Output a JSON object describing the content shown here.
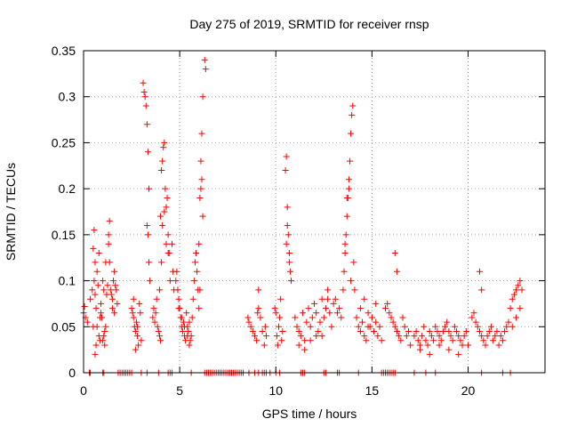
{
  "chart_data": {
    "type": "scatter",
    "title": "Day 275 of 2019, SRMTID for receiver rnsp",
    "xlabel": "GPS time / hours",
    "ylabel": "SRMTID / TECUs",
    "xlim": [
      0,
      24
    ],
    "ylim": [
      0,
      0.35
    ],
    "xticks": [
      0,
      5,
      10,
      15,
      20
    ],
    "xtick_labels": [
      "0",
      "5",
      "10",
      "15",
      "20"
    ],
    "yticks": [
      0,
      0.05,
      0.1,
      0.15,
      0.2,
      0.25,
      0.3,
      0.35
    ],
    "ytick_labels": [
      "0",
      "0.05",
      "0.1",
      "0.15",
      "0.2",
      "0.25",
      "0.3",
      "0.35"
    ],
    "grid": true,
    "marker": "+",
    "color": "#ff0000",
    "series": [
      {
        "name": "SRMTID",
        "x": [
          0.0,
          0.05,
          0.1,
          0.2,
          0.35,
          0.45,
          0.5,
          0.55,
          0.6,
          0.65,
          0.7,
          0.75,
          0.8,
          0.85,
          0.9,
          0.95,
          1.0,
          1.05,
          1.1,
          1.15,
          1.2,
          1.25,
          1.3,
          1.35,
          1.4,
          1.45,
          1.5,
          1.55,
          1.6,
          1.65,
          1.7,
          1.75,
          0.5,
          0.55,
          0.6,
          0.8,
          0.9,
          1.0,
          1.05,
          1.1,
          1.15,
          0.6,
          0.65,
          0.7,
          0.85,
          1.3,
          1.35,
          1.5,
          1.6,
          2.5,
          2.55,
          2.6,
          2.65,
          2.7,
          2.75,
          2.8,
          2.85,
          2.9,
          2.95,
          3.0,
          2.6,
          2.7,
          2.8,
          3.1,
          3.15,
          3.2,
          3.25,
          3.3,
          3.35,
          3.4,
          3.3,
          3.35,
          3.4,
          3.45,
          3.6,
          3.65,
          3.7,
          3.75,
          3.8,
          3.85,
          3.9,
          3.95,
          4.0,
          4.05,
          4.1,
          4.15,
          4.2,
          4.25,
          4.3,
          4.35,
          4.4,
          4.45,
          4.5,
          4.6,
          4.65,
          4.7,
          3.95,
          4.0,
          4.05,
          4.1,
          4.2,
          4.3,
          4.4,
          4.8,
          4.85,
          4.9,
          4.95,
          5.0,
          5.05,
          5.1,
          5.15,
          5.2,
          5.25,
          5.3,
          5.35,
          5.4,
          5.45,
          5.5,
          5.55,
          5.6,
          4.95,
          5.1,
          5.25,
          5.4,
          5.5,
          5.65,
          5.7,
          5.75,
          5.8,
          5.85,
          5.9,
          5.95,
          6.0,
          6.05,
          6.1,
          6.15,
          6.2,
          6.3,
          6.35,
          6.0,
          6.05,
          6.1,
          6.15,
          6.2,
          8.55,
          8.6,
          8.7,
          8.8,
          8.9,
          9.0,
          9.05,
          9.1,
          9.2,
          9.3,
          9.4,
          9.45,
          9.5,
          9.1,
          9.95,
          10.0,
          10.05,
          10.1,
          10.15,
          10.2,
          10.25,
          10.3,
          10.35,
          10.5,
          10.55,
          10.6,
          10.65,
          10.7,
          10.75,
          10.8,
          10.55,
          10.6,
          10.7,
          11.0,
          11.1,
          11.2,
          11.3,
          11.4,
          11.5,
          11.6,
          11.7,
          11.8,
          11.9,
          12.0,
          12.1,
          12.2,
          12.3,
          12.4,
          12.5,
          12.6,
          12.7,
          12.8,
          12.9,
          11.2,
          11.5,
          11.8,
          12.1,
          12.4,
          12.7,
          13.0,
          13.1,
          13.2,
          13.3,
          13.4,
          13.5,
          13.55,
          13.6,
          13.65,
          13.7,
          13.75,
          13.8,
          13.85,
          13.9,
          13.95,
          14.0,
          14.05,
          14.1,
          13.6,
          13.7,
          13.8,
          13.9,
          14.2,
          14.3,
          14.4,
          14.5,
          14.6,
          14.7,
          14.8,
          14.9,
          15.0,
          15.1,
          15.2,
          15.3,
          15.4,
          15.5,
          14.4,
          14.6,
          14.8,
          15.0,
          15.2,
          15.7,
          15.8,
          15.9,
          16.0,
          16.1,
          16.2,
          16.3,
          16.4,
          16.5,
          16.6,
          16.7,
          16.8,
          16.9,
          17.0,
          16.2,
          16.3,
          17.2,
          17.3,
          17.4,
          17.5,
          17.6,
          17.7,
          17.8,
          17.9,
          18.0,
          18.1,
          18.2,
          18.3,
          18.4,
          18.5,
          18.6,
          18.7,
          18.8,
          18.9,
          19.0,
          19.1,
          19.2,
          19.3,
          19.4,
          19.5,
          19.6,
          19.7,
          19.8,
          19.9,
          20.0,
          17.5,
          18.0,
          18.5,
          19.0,
          19.5,
          20.2,
          20.3,
          20.4,
          20.5,
          20.6,
          20.7,
          20.8,
          20.9,
          21.0,
          21.1,
          21.2,
          21.3,
          21.4,
          21.5,
          21.6,
          21.7,
          21.8,
          21.9,
          22.0,
          22.1,
          22.2,
          22.3,
          22.4,
          22.5,
          22.6,
          22.7,
          22.8,
          20.6,
          20.7,
          22.3,
          22.5,
          22.7,
          0.3,
          0.35,
          1.0,
          1.05,
          1.8,
          1.9,
          2.0,
          2.1,
          2.2,
          2.3,
          2.4,
          2.5,
          3.0,
          3.3,
          3.9,
          4.4,
          4.5,
          4.6,
          5.6,
          6.3,
          6.4,
          6.5,
          6.6,
          6.7,
          6.8,
          6.9,
          7.0,
          7.1,
          7.2,
          7.3,
          7.4,
          7.5,
          7.6,
          7.7,
          7.8,
          7.9,
          8.0,
          8.1,
          8.2,
          8.3,
          8.6,
          8.9,
          9.1,
          9.3,
          9.4,
          9.5,
          9.7,
          10.0,
          10.2,
          11.3,
          11.4,
          11.5,
          12.5,
          12.6,
          13.2,
          13.3,
          14.3,
          15.5,
          15.6,
          15.7,
          15.8,
          15.9,
          16.0,
          16.1,
          16.2,
          17.2,
          17.8,
          18.3,
          20.7,
          21.8,
          22.2
        ],
        "y": [
          0.065,
          0.072,
          0.06,
          0.055,
          0.08,
          0.09,
          0.05,
          0.1,
          0.085,
          0.07,
          0.11,
          0.095,
          0.04,
          0.035,
          0.075,
          0.06,
          0.1,
          0.09,
          0.045,
          0.12,
          0.085,
          0.095,
          0.15,
          0.165,
          0.09,
          0.085,
          0.08,
          0.1,
          0.11,
          0.095,
          0.09,
          0.075,
          0.135,
          0.155,
          0.12,
          0.13,
          0.065,
          0.035,
          0.04,
          0.03,
          0.05,
          0.02,
          0.03,
          0.05,
          0.06,
          0.14,
          0.12,
          0.07,
          0.065,
          0.07,
          0.065,
          0.06,
          0.05,
          0.045,
          0.055,
          0.04,
          0.03,
          0.075,
          0.065,
          0.035,
          0.08,
          0.025,
          0.05,
          0.315,
          0.305,
          0.3,
          0.29,
          0.27,
          0.24,
          0.2,
          0.16,
          0.15,
          0.12,
          0.1,
          0.06,
          0.07,
          0.055,
          0.065,
          0.08,
          0.05,
          0.045,
          0.09,
          0.17,
          0.22,
          0.23,
          0.245,
          0.25,
          0.2,
          0.18,
          0.19,
          0.15,
          0.13,
          0.1,
          0.14,
          0.11,
          0.09,
          0.04,
          0.035,
          0.12,
          0.16,
          0.175,
          0.14,
          0.13,
          0.1,
          0.11,
          0.09,
          0.08,
          0.07,
          0.06,
          0.05,
          0.045,
          0.055,
          0.04,
          0.035,
          0.065,
          0.05,
          0.045,
          0.03,
          0.035,
          0.04,
          0.07,
          0.06,
          0.05,
          0.04,
          0.055,
          0.06,
          0.08,
          0.1,
          0.12,
          0.13,
          0.11,
          0.09,
          0.14,
          0.19,
          0.23,
          0.26,
          0.3,
          0.34,
          0.33,
          0.07,
          0.09,
          0.2,
          0.21,
          0.17,
          0.06,
          0.055,
          0.05,
          0.045,
          0.04,
          0.035,
          0.065,
          0.07,
          0.06,
          0.045,
          0.03,
          0.05,
          0.04,
          0.09,
          0.07,
          0.065,
          0.04,
          0.03,
          0.05,
          0.06,
          0.08,
          0.035,
          0.045,
          0.22,
          0.235,
          0.18,
          0.15,
          0.13,
          0.11,
          0.1,
          0.14,
          0.16,
          0.12,
          0.06,
          0.05,
          0.045,
          0.04,
          0.065,
          0.035,
          0.055,
          0.07,
          0.05,
          0.06,
          0.075,
          0.065,
          0.045,
          0.055,
          0.04,
          0.06,
          0.07,
          0.08,
          0.065,
          0.05,
          0.03,
          0.025,
          0.035,
          0.04,
          0.08,
          0.09,
          0.075,
          0.08,
          0.065,
          0.07,
          0.06,
          0.09,
          0.11,
          0.13,
          0.15,
          0.17,
          0.19,
          0.21,
          0.23,
          0.26,
          0.28,
          0.29,
          0.12,
          0.09,
          0.14,
          0.19,
          0.2,
          0.1,
          0.06,
          0.05,
          0.045,
          0.055,
          0.04,
          0.035,
          0.065,
          0.05,
          0.06,
          0.045,
          0.055,
          0.04,
          0.05,
          0.035,
          0.07,
          0.08,
          0.05,
          0.06,
          0.075,
          0.07,
          0.075,
          0.065,
          0.06,
          0.055,
          0.05,
          0.045,
          0.04,
          0.035,
          0.06,
          0.05,
          0.04,
          0.045,
          0.03,
          0.13,
          0.11,
          0.04,
          0.045,
          0.035,
          0.03,
          0.04,
          0.05,
          0.035,
          0.03,
          0.045,
          0.04,
          0.035,
          0.05,
          0.045,
          0.04,
          0.035,
          0.045,
          0.05,
          0.055,
          0.045,
          0.04,
          0.035,
          0.05,
          0.045,
          0.04,
          0.035,
          0.03,
          0.04,
          0.045,
          0.03,
          0.025,
          0.02,
          0.03,
          0.025,
          0.02,
          0.06,
          0.065,
          0.055,
          0.05,
          0.045,
          0.04,
          0.035,
          0.03,
          0.04,
          0.045,
          0.05,
          0.035,
          0.04,
          0.045,
          0.03,
          0.04,
          0.035,
          0.045,
          0.05,
          0.055,
          0.07,
          0.08,
          0.085,
          0.09,
          0.095,
          0.1,
          0.09,
          0.11,
          0.09,
          0.05,
          0.06,
          0.07,
          0.0,
          0.0,
          0.0,
          0.0,
          0.0,
          0.0,
          0.0,
          0.0,
          0.0,
          0.0,
          0.0,
          0.0,
          0.0,
          0.0,
          0.0,
          0.0,
          0.0,
          0.0,
          0.0,
          0.0,
          0.0,
          0.0,
          0.0,
          0.0,
          0.0,
          0.0,
          0.0,
          0.0,
          0.0,
          0.0,
          0.0,
          0.0,
          0.0,
          0.0,
          0.0,
          0.0,
          0.0,
          0.0,
          0.0,
          0.0,
          0.0,
          0.0,
          0.0,
          0.0,
          0.0,
          0.0,
          0.0,
          0.0,
          0.0,
          0.0,
          0.0,
          0.0,
          0.0,
          0.0,
          0.0,
          0.0,
          0.0,
          0.0,
          0.0,
          0.0,
          0.0,
          0.0,
          0.0,
          0.0,
          0.0,
          0.0,
          0.0,
          0.0,
          0.0,
          0.0,
          0.0
        ]
      }
    ]
  }
}
